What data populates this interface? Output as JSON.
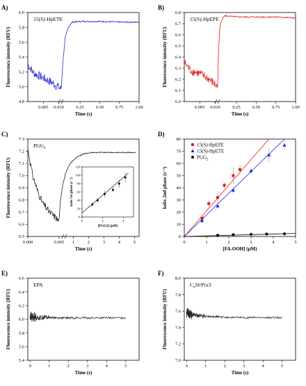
{
  "chart_data": [
    {
      "type": "line",
      "panel_label": "A)",
      "title": "15(S)-HpETE",
      "xlabel": "Time (s)",
      "ylabel": "Fluorescence intensity (RFU)",
      "x_tick_labels": [
        "0.005",
        "0.010",
        "0.25",
        "0.50",
        "0.75",
        "1.00"
      ],
      "ylim": [
        4.8,
        6.0
      ],
      "y_tick_labels": [
        "4.8",
        "5.0",
        "5.2",
        "5.4",
        "5.6",
        "5.8",
        "6.0"
      ],
      "color": "#2a2ad0",
      "series": [
        {
          "x": [
            0,
            0.002,
            0.005,
            0.008,
            0.0108,
            0.03,
            0.06,
            0.1,
            0.15,
            0.25,
            0.5,
            0.75,
            1.0
          ],
          "y": [
            5.3,
            5.18,
            5.12,
            5.05,
            4.97,
            5.3,
            5.65,
            5.8,
            5.87,
            5.88,
            5.88,
            5.87,
            5.87
          ]
        }
      ]
    },
    {
      "type": "line",
      "panel_label": "B)",
      "title": "15(S)-HpEPE",
      "xlabel": "Time (s)",
      "ylabel": "Fluorescence intensity (RFU)",
      "x_tick_labels": [
        "0.005",
        "0.010",
        "0.25",
        "0.50",
        "0.75",
        "1.00"
      ],
      "ylim": [
        6.0,
        6.8
      ],
      "y_tick_labels": [
        "6.0",
        "6.1",
        "6.2",
        "6.3",
        "6.4",
        "6.5",
        "6.6",
        "6.7",
        "6.8"
      ],
      "color": "#e21d1d",
      "series": [
        {
          "x": [
            0,
            0.002,
            0.005,
            0.008,
            0.0108,
            0.02,
            0.04,
            0.07,
            0.1,
            0.25,
            0.5,
            0.75,
            1.0
          ],
          "y": [
            6.35,
            6.28,
            6.25,
            6.2,
            6.13,
            6.45,
            6.68,
            6.75,
            6.77,
            6.76,
            6.76,
            6.76,
            6.75
          ]
        }
      ]
    },
    {
      "type": "line",
      "panel_label": "C)",
      "title": "PGG2",
      "xlabel": "Time (s)",
      "ylabel": "Fluorescence intensity (RFU)",
      "x_tick_labels": [
        "0.000",
        "0.065",
        "1",
        "2",
        "3",
        "4",
        "5"
      ],
      "ylim": [
        6.5,
        7.3
      ],
      "y_tick_labels": [
        "6.5",
        "6.6",
        "6.7",
        "6.8",
        "6.9",
        "7.0",
        "7.1",
        "7.2",
        "7.3"
      ],
      "color": "#222222",
      "series": [
        {
          "x": [
            0,
            0.01,
            0.02,
            0.03,
            0.045,
            0.06,
            0.065,
            0.15,
            0.3,
            0.5,
            0.8,
            1.2,
            1.7,
            2.2,
            3.0,
            4.0,
            5.0
          ],
          "y": [
            7.22,
            7.0,
            6.88,
            6.78,
            6.7,
            6.65,
            6.62,
            6.78,
            6.92,
            7.02,
            7.1,
            7.15,
            7.18,
            7.19,
            7.19,
            7.19,
            7.19
          ]
        }
      ],
      "inset": {
        "type": "scatter",
        "xlabel": "[PGG2] (μM)",
        "ylabel": "kobs 1st phase (s⁻¹)",
        "xlim": [
          0,
          5
        ],
        "ylim": [
          0,
          120
        ],
        "x_tick_labels": [
          "0",
          "2",
          "4"
        ],
        "y_tick_labels": [
          "0",
          "20",
          "40",
          "60",
          "80",
          "100",
          "120"
        ],
        "x": [
          1.0,
          1.5,
          2.2,
          3.0,
          3.6,
          4.2
        ],
        "y": [
          30,
          40,
          55,
          65,
          80,
          95
        ],
        "err": [
          5,
          6,
          8,
          6,
          9,
          12
        ],
        "fit": {
          "x": [
            0,
            4.5
          ],
          "y": [
            10,
            105
          ]
        }
      }
    },
    {
      "type": "scatter",
      "panel_label": "D)",
      "xlabel": "[FA-OOH] (μM)",
      "ylabel": "kobs 2nd phase (s⁻¹)",
      "xlim": [
        0,
        5
      ],
      "ylim": [
        0,
        80
      ],
      "x_tick_labels": [
        "0",
        "1",
        "2",
        "3",
        "4",
        "5"
      ],
      "y_tick_labels": [
        "0",
        "10",
        "20",
        "30",
        "40",
        "50",
        "60",
        "70",
        "80"
      ],
      "legend_position": "top-left",
      "series": [
        {
          "name": "15(S)-HpEPE",
          "color": "#e21d1d",
          "marker": "square",
          "x": [
            0.8,
            1.1,
            1.5,
            1.8,
            2.2,
            2.5
          ],
          "y": [
            15,
            27,
            32,
            42,
            50,
            55
          ],
          "err": [
            2,
            3,
            5,
            3,
            7,
            4
          ],
          "fit": {
            "x": [
              0,
              3.8
            ],
            "y": [
              0,
              80
            ]
          }
        },
        {
          "name": "15(S)-HpETE",
          "color": "#1d1de2",
          "marker": "triangle",
          "x": [
            0.8,
            1.5,
            2.2,
            3.0,
            3.8,
            4.5
          ],
          "y": [
            13,
            25,
            38,
            54,
            67,
            75
          ],
          "err": [
            2,
            3,
            3,
            3,
            6,
            4
          ],
          "fit": {
            "x": [
              0,
              4.5
            ],
            "y": [
              0,
              80
            ]
          }
        },
        {
          "name": "PGG2",
          "color": "#000000",
          "marker": "circle",
          "x": [
            1.5,
            2.2,
            3.0,
            3.7,
            4.5
          ],
          "y": [
            1,
            1.5,
            1.8,
            2,
            2.2
          ],
          "err": [
            0,
            0,
            0,
            0,
            0
          ],
          "fit": {
            "x": [
              0,
              5
            ],
            "y": [
              0,
              2.5
            ]
          }
        }
      ]
    },
    {
      "type": "line",
      "panel_label": "E)",
      "title": "EPA",
      "xlabel": "Time (s)",
      "ylabel": "Fluorescence intensity (RFU)",
      "xlim": [
        0,
        5
      ],
      "ylim": [
        5.4,
        6.6
      ],
      "x_tick_labels": [
        "0",
        "1",
        "2",
        "3",
        "4",
        "5"
      ],
      "y_tick_labels": [
        "5.4",
        "5.6",
        "5.8",
        "6.0",
        "6.2",
        "6.4",
        "6.6"
      ],
      "color": "#222222",
      "series": [
        {
          "x": [
            0,
            0.05,
            0.1,
            0.2,
            0.4,
            0.8,
            1.5,
            2.5,
            3.5,
            4.5,
            5.0
          ],
          "y": [
            6.03,
            6.05,
            6.02,
            6.04,
            6.02,
            6.03,
            6.02,
            6.02,
            6.02,
            6.02,
            6.02
          ]
        }
      ]
    },
    {
      "type": "line",
      "panel_label": "F)",
      "title": "CnSlrPrx3",
      "xlabel": "Time (s)",
      "ylabel": "Fluorescence intensity (RFU)",
      "xlim": [
        0,
        5
      ],
      "ylim": [
        7.0,
        8.0
      ],
      "x_tick_labels": [
        "0",
        "1",
        "2",
        "3",
        "4",
        "5"
      ],
      "y_tick_labels": [
        "7.0",
        "7.2",
        "7.4",
        "7.6",
        "7.8",
        "8.0"
      ],
      "color": "#222222",
      "series": [
        {
          "x": [
            0,
            0.05,
            0.1,
            0.2,
            0.4,
            0.8,
            1.5,
            2.5,
            3.5,
            4.5,
            5.0
          ],
          "y": [
            7.55,
            7.6,
            7.56,
            7.56,
            7.55,
            7.54,
            7.53,
            7.52,
            7.52,
            7.52,
            7.52
          ]
        }
      ]
    }
  ]
}
